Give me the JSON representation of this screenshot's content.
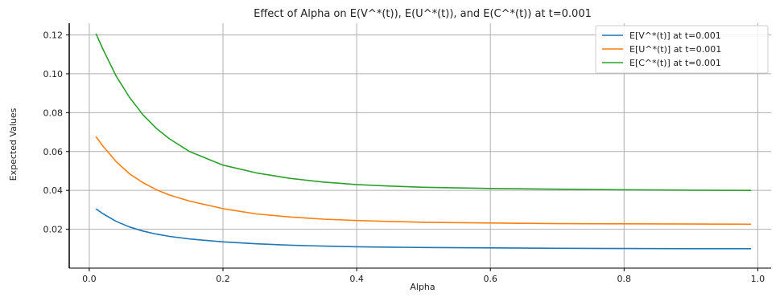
{
  "chart_data": {
    "type": "line",
    "title": "Effect of Alpha on E(V^*(t)), E(U^*(t)), and E(C^*(t)) at t=0.001",
    "xlabel": "Alpha",
    "ylabel": "Expected Values",
    "xlim": [
      -0.03,
      1.02
    ],
    "ylim": [
      0.0,
      0.126
    ],
    "xticks": [
      0.0,
      0.2,
      0.4,
      0.6,
      0.8,
      1.0
    ],
    "xtick_labels": [
      "0.0",
      "0.2",
      "0.4",
      "0.6",
      "0.8",
      "1.0"
    ],
    "yticks": [
      0.02,
      0.04,
      0.06,
      0.08,
      0.1,
      0.12
    ],
    "ytick_labels": [
      "0.02",
      "0.04",
      "0.06",
      "0.08",
      "0.10",
      "0.12"
    ],
    "grid": true,
    "legend_position": "top-right",
    "x": [
      0.01,
      0.02,
      0.04,
      0.06,
      0.08,
      0.1,
      0.12,
      0.15,
      0.2,
      0.25,
      0.3,
      0.35,
      0.4,
      0.45,
      0.5,
      0.6,
      0.7,
      0.8,
      0.9,
      0.99
    ],
    "series": [
      {
        "name": "E[V^*(t)] at t=0.001",
        "color": "#1f77b4",
        "values": [
          0.0305,
          0.0281,
          0.0241,
          0.0212,
          0.0191,
          0.0175,
          0.0163,
          0.015,
          0.0135,
          0.0125,
          0.0118,
          0.0113,
          0.011,
          0.0108,
          0.0106,
          0.0104,
          0.0102,
          0.0101,
          0.01,
          0.01
        ]
      },
      {
        "name": "E[U^*(t)] at t=0.001",
        "color": "#ff7f0e",
        "values": [
          0.0677,
          0.063,
          0.0549,
          0.0486,
          0.044,
          0.0404,
          0.0376,
          0.0345,
          0.0306,
          0.0279,
          0.0263,
          0.0252,
          0.0245,
          0.024,
          0.0236,
          0.0232,
          0.0229,
          0.0228,
          0.0227,
          0.0226
        ]
      },
      {
        "name": "E[C^*(t)] at t=0.001",
        "color": "#2ca02c",
        "values": [
          0.1207,
          0.113,
          0.099,
          0.088,
          0.079,
          0.072,
          0.0665,
          0.06,
          0.053,
          0.049,
          0.0462,
          0.0443,
          0.043,
          0.0422,
          0.0416,
          0.041,
          0.0406,
          0.0403,
          0.0401,
          0.04
        ]
      }
    ]
  }
}
